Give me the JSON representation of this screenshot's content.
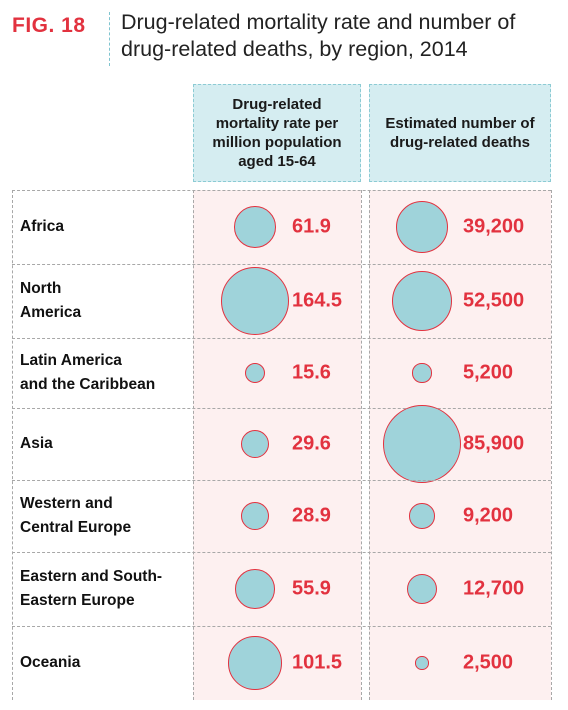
{
  "header": {
    "fig_label": "FIG. 18",
    "title": "Drug-related mortality rate and number of drug-related deaths, by region, 2014"
  },
  "colors": {
    "accent": "#e2323f",
    "bubble_fill": "#9fd3da",
    "header_bg": "#d5edf1",
    "cell_bg": "#fdf0f0"
  },
  "chart_data": {
    "type": "table",
    "title": "Drug-related mortality rate and number of drug-related deaths, by region, 2014",
    "columns": [
      "Drug-related mortality rate per million population aged 15-64",
      "Estimated number of drug-related deaths"
    ],
    "rows": [
      {
        "region": "Africa",
        "rate": 61.9,
        "rate_label": "61.9",
        "deaths": 39200,
        "deaths_label": "39,200"
      },
      {
        "region": "North\nAmerica",
        "rate": 164.5,
        "rate_label": "164.5",
        "deaths": 52500,
        "deaths_label": "52,500"
      },
      {
        "region": "Latin  America\nand the Caribbean",
        "rate": 15.6,
        "rate_label": "15.6",
        "deaths": 5200,
        "deaths_label": "5,200"
      },
      {
        "region": "Asia",
        "rate": 29.6,
        "rate_label": "29.6",
        "deaths": 85900,
        "deaths_label": "85,900"
      },
      {
        "region": "Western and\nCentral  Europe",
        "rate": 28.9,
        "rate_label": "28.9",
        "deaths": 9200,
        "deaths_label": "9,200"
      },
      {
        "region": "Eastern and South-\nEastern Europe",
        "rate": 55.9,
        "rate_label": "55.9",
        "deaths": 12700,
        "deaths_label": "12,700"
      },
      {
        "region": "Oceania",
        "rate": 101.5,
        "rate_label": "101.5",
        "deaths": 2500,
        "deaths_label": "2,500"
      }
    ]
  }
}
